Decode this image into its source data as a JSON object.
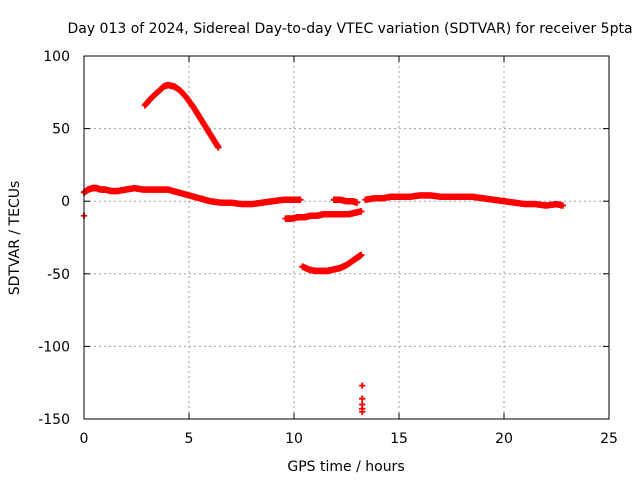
{
  "chart_data": {
    "type": "scatter",
    "title": "Day 013 of 2024, Sidereal Day-to-day VTEC variation (SDTVAR) for receiver 5pta",
    "xlabel": "GPS time / hours",
    "ylabel": "SDTVAR / TECUs",
    "xlim": [
      0,
      25
    ],
    "ylim": [
      -150,
      100
    ],
    "xticks": [
      0,
      5,
      10,
      15,
      20,
      25
    ],
    "yticks": [
      100,
      50,
      0,
      -50,
      -100,
      -150
    ],
    "xtick_labels": [
      "0",
      "5",
      "10",
      "15",
      "20",
      "25"
    ],
    "ytick_labels": [
      "100",
      "50",
      "0",
      "-50",
      "-100",
      "-150"
    ],
    "grid": true,
    "marker": "plus",
    "color": "#ff0000",
    "series": [
      {
        "name": "main-track",
        "x": [
          0.0,
          0.2,
          0.4,
          0.6,
          0.8,
          1.0,
          1.3,
          1.6,
          2.0,
          2.4,
          2.8,
          3.2,
          3.6,
          4.0,
          4.5,
          5.0,
          5.5,
          6.0,
          6.5,
          7.0,
          7.5,
          8.0,
          8.5,
          9.0,
          9.5,
          10.0,
          10.3
        ],
        "y": [
          6,
          8,
          9,
          9,
          8,
          8,
          7,
          7,
          8,
          9,
          8,
          8,
          8,
          8,
          6,
          4,
          2,
          0,
          -1,
          -1,
          -2,
          -2,
          -1,
          0,
          1,
          1,
          1
        ]
      },
      {
        "name": "track-resume",
        "x": [
          11.9,
          12.2,
          12.5,
          12.8,
          13.0
        ],
        "y": [
          1,
          1,
          0,
          0,
          -1
        ]
      },
      {
        "name": "late-track",
        "x": [
          13.4,
          13.8,
          14.2,
          14.6,
          15.0,
          15.5,
          16.0,
          16.5,
          17.0,
          17.5,
          18.0,
          18.5,
          19.0,
          19.5,
          20.0,
          20.5,
          21.0,
          21.5,
          22.0,
          22.5,
          22.8
        ],
        "y": [
          1,
          2,
          2,
          3,
          3,
          3,
          4,
          4,
          3,
          3,
          3,
          3,
          2,
          1,
          0,
          -1,
          -2,
          -2,
          -3,
          -2,
          -3
        ]
      },
      {
        "name": "high-arc",
        "x": [
          2.9,
          3.2,
          3.5,
          3.8,
          4.0,
          4.3,
          4.6,
          4.9,
          5.2,
          5.5,
          5.8,
          6.1,
          6.4
        ],
        "y": [
          66,
          71,
          75,
          79,
          80,
          79,
          76,
          71,
          65,
          58,
          51,
          44,
          37
        ]
      },
      {
        "name": "mid-negative",
        "x": [
          9.6,
          9.9,
          10.2,
          10.5,
          10.8,
          11.1,
          11.4,
          11.7,
          12.0,
          12.3,
          12.6,
          12.9,
          13.2
        ],
        "y": [
          -12,
          -12,
          -11,
          -11,
          -10,
          -10,
          -9,
          -9,
          -9,
          -9,
          -9,
          -8,
          -7
        ]
      },
      {
        "name": "low-arc",
        "x": [
          10.4,
          10.7,
          11.0,
          11.3,
          11.6,
          11.9,
          12.2,
          12.5,
          12.8,
          13.0,
          13.2
        ],
        "y": [
          -45,
          -47,
          -48,
          -48,
          -48,
          -47,
          -46,
          -44,
          -41,
          -39,
          -37
        ]
      },
      {
        "name": "spikes",
        "x": [
          0.0,
          13.25,
          13.25,
          13.25,
          13.25,
          13.25
        ],
        "y": [
          -10,
          -127,
          -136,
          -140,
          -143,
          -145
        ]
      }
    ]
  }
}
